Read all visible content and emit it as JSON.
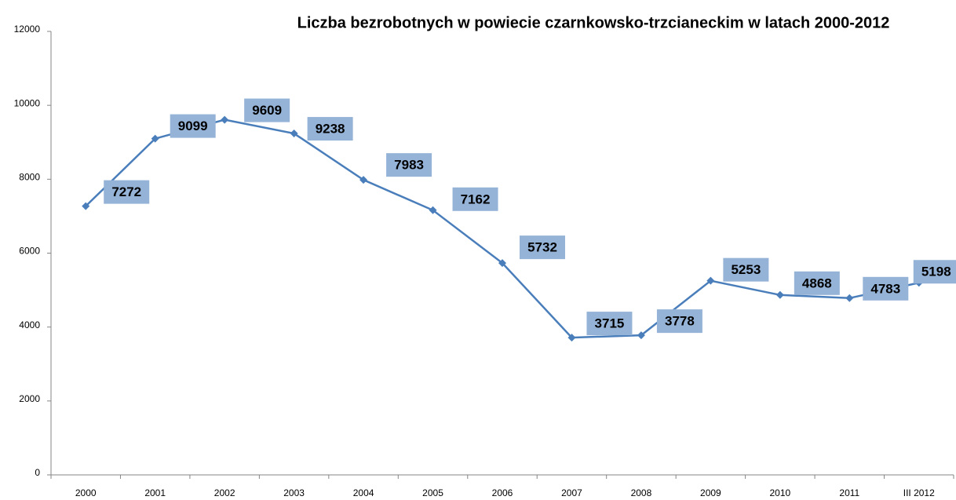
{
  "chart_data": {
    "type": "line",
    "title": "Liczba bezrobotnych w powiecie czarnkowsko-trzcianeckim w latach 2000-2012",
    "categories": [
      "2000",
      "2001",
      "2002",
      "2003",
      "2004",
      "2005",
      "2006",
      "2007",
      "2008",
      "2009",
      "2010",
      "2011",
      "III 2012"
    ],
    "series": [
      {
        "name": "Liczba bezrobotnych",
        "color": "#4a7ebb",
        "values": [
          7272,
          9099,
          9609,
          9238,
          7983,
          7162,
          5732,
          3715,
          3778,
          5253,
          4868,
          4783,
          5198
        ]
      }
    ],
    "ylim": [
      0,
      12000
    ],
    "yticks": [
      0,
      2000,
      4000,
      6000,
      8000,
      10000,
      12000
    ],
    "grid": false,
    "data_labels": true,
    "label_box_color": "#95b3d7"
  }
}
